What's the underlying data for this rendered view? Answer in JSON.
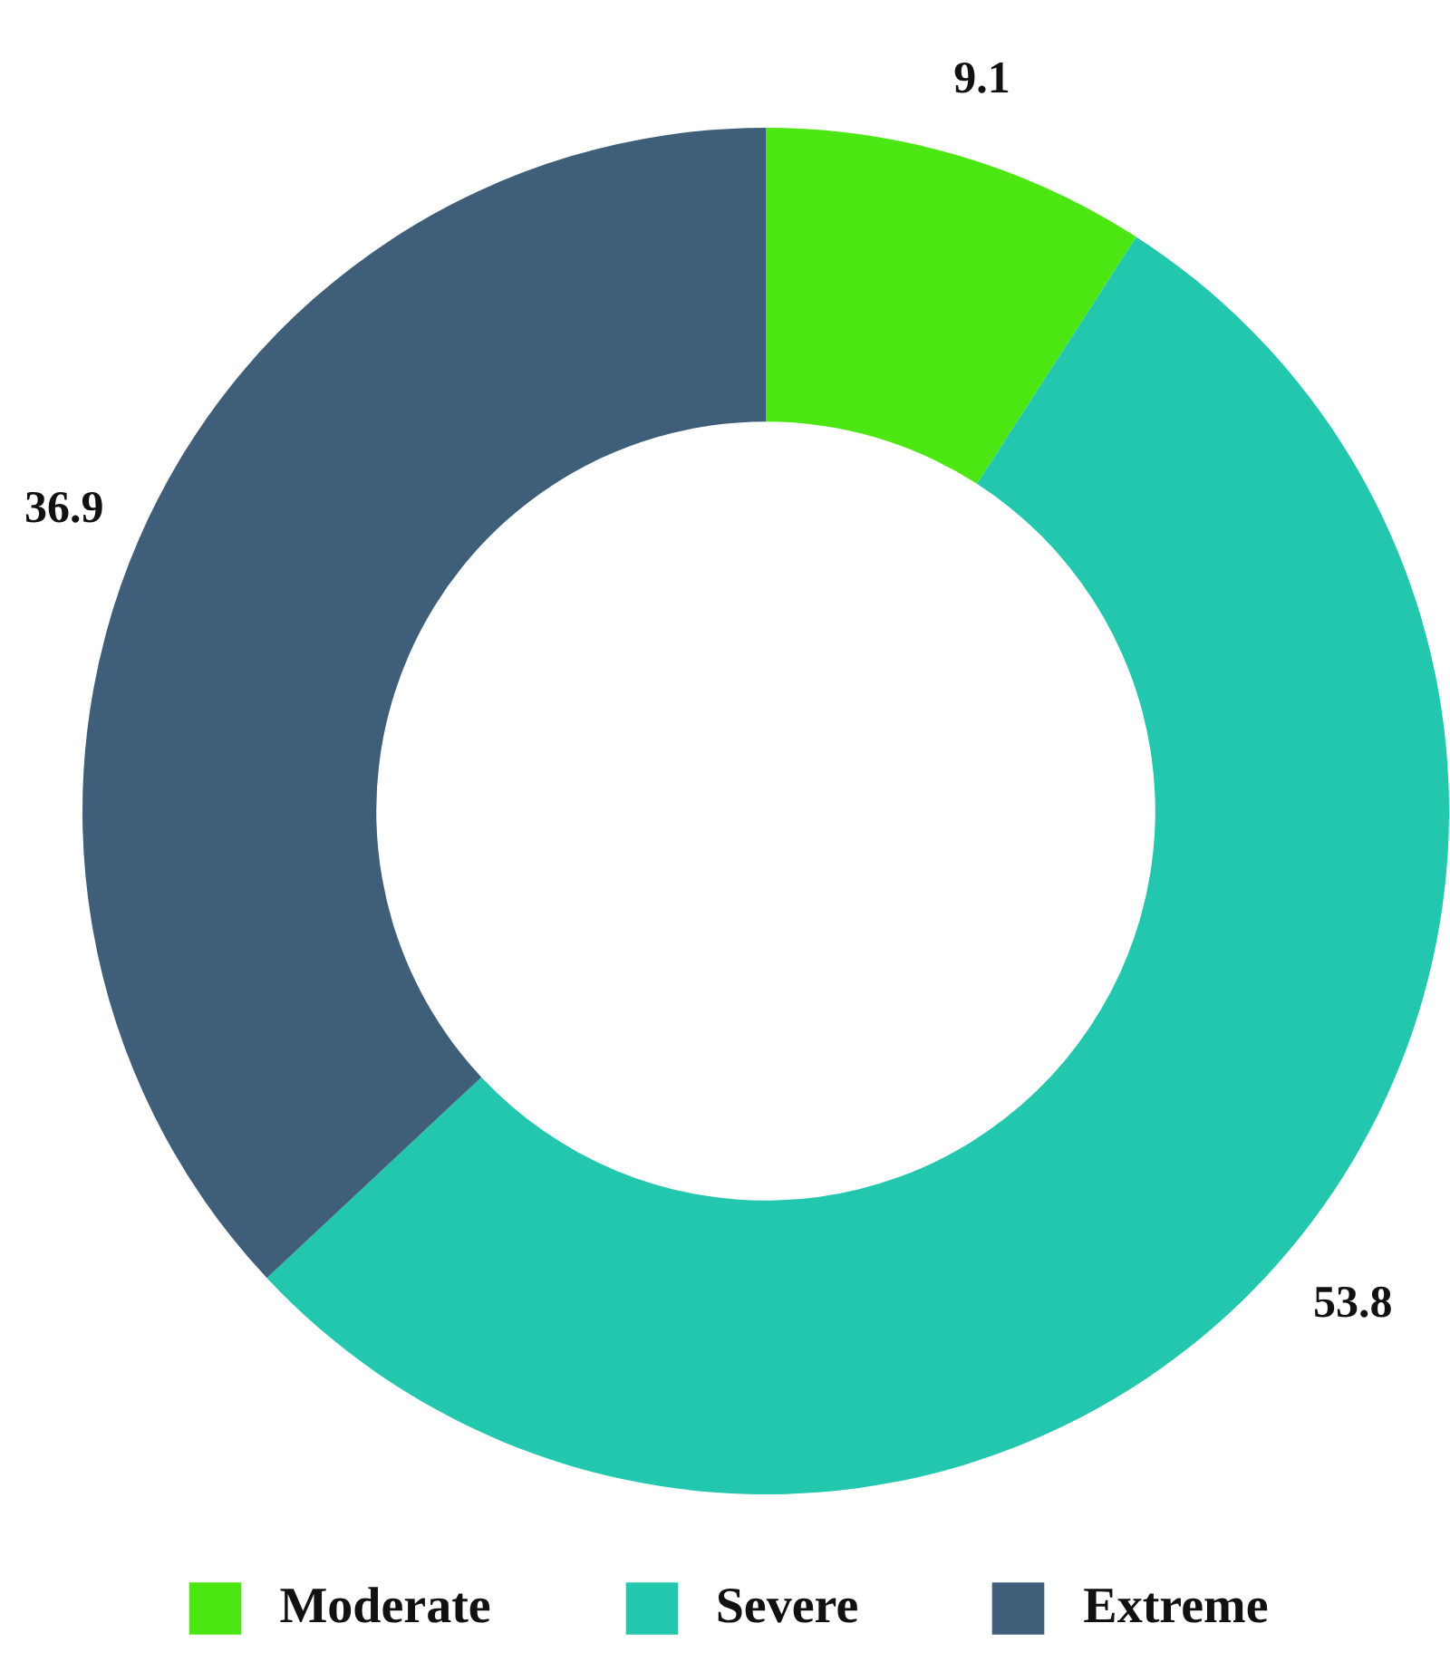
{
  "chart_data": {
    "type": "donut",
    "categories": [
      "Moderate",
      "Severe",
      "Extreme"
    ],
    "values": [
      9.1,
      53.8,
      36.9
    ],
    "colors": [
      "#4ce612",
      "#22c7ae",
      "#3f5e7a"
    ],
    "data_labels": true,
    "legend": "bottom"
  }
}
